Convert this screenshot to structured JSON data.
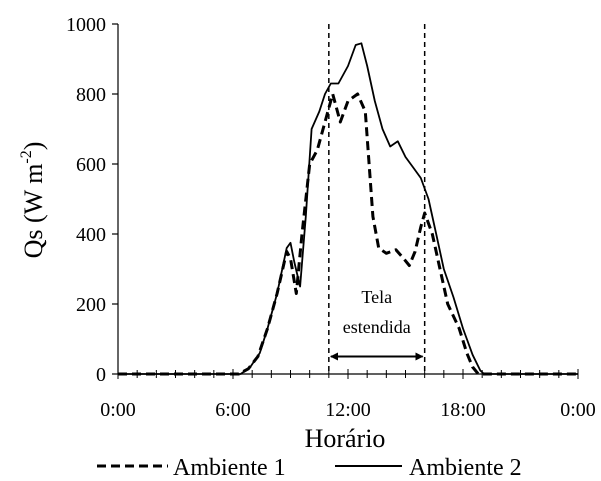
{
  "chart_data": {
    "type": "line",
    "title": "",
    "xlabel": "Horário",
    "ylabel": "Qs (W m",
    "ylabel_sup": "-2",
    "ylabel_close": ")",
    "xlim": [
      0,
      24
    ],
    "ylim": [
      0,
      1000
    ],
    "xticks": [
      0,
      6,
      12,
      18,
      24
    ],
    "xtick_labels": [
      "0:00",
      "6:00",
      "12:00",
      "18:00",
      "0:00"
    ],
    "yticks": [
      0,
      200,
      400,
      600,
      800,
      1000
    ],
    "ytick_labels": [
      "0",
      "200",
      "400",
      "600",
      "800",
      "1000"
    ],
    "grid": false,
    "legend_position": "bottom",
    "series": [
      {
        "name": "Ambiente 1",
        "dash": "dashed",
        "points": [
          [
            0,
            0
          ],
          [
            6.3,
            0
          ],
          [
            6.8,
            15
          ],
          [
            7.3,
            50
          ],
          [
            7.8,
            130
          ],
          [
            8.3,
            230
          ],
          [
            8.8,
            350
          ],
          [
            9.0,
            330
          ],
          [
            9.3,
            230
          ],
          [
            9.6,
            400
          ],
          [
            10.0,
            600
          ],
          [
            10.4,
            640
          ],
          [
            10.8,
            720
          ],
          [
            11.2,
            800
          ],
          [
            11.6,
            720
          ],
          [
            12.0,
            780
          ],
          [
            12.5,
            800
          ],
          [
            12.9,
            750
          ],
          [
            13.3,
            450
          ],
          [
            13.6,
            360
          ],
          [
            14.0,
            345
          ],
          [
            14.5,
            355
          ],
          [
            14.9,
            330
          ],
          [
            15.2,
            310
          ],
          [
            15.5,
            350
          ],
          [
            15.8,
            420
          ],
          [
            16.0,
            460
          ],
          [
            16.4,
            400
          ],
          [
            16.8,
            300
          ],
          [
            17.2,
            200
          ],
          [
            17.8,
            130
          ],
          [
            18.2,
            60
          ],
          [
            18.5,
            20
          ],
          [
            18.8,
            0
          ],
          [
            24,
            0
          ]
        ]
      },
      {
        "name": "Ambiente 2",
        "dash": "solid",
        "points": [
          [
            0,
            0
          ],
          [
            6.4,
            0
          ],
          [
            6.9,
            20
          ],
          [
            7.4,
            60
          ],
          [
            7.8,
            130
          ],
          [
            8.3,
            230
          ],
          [
            8.8,
            360
          ],
          [
            9.0,
            375
          ],
          [
            9.2,
            320
          ],
          [
            9.5,
            250
          ],
          [
            9.8,
            450
          ],
          [
            10.1,
            700
          ],
          [
            10.5,
            750
          ],
          [
            10.8,
            800
          ],
          [
            11.1,
            830
          ],
          [
            11.5,
            830
          ],
          [
            12.0,
            880
          ],
          [
            12.4,
            940
          ],
          [
            12.7,
            945
          ],
          [
            13.0,
            880
          ],
          [
            13.4,
            780
          ],
          [
            13.8,
            700
          ],
          [
            14.2,
            650
          ],
          [
            14.6,
            665
          ],
          [
            15.0,
            620
          ],
          [
            15.4,
            590
          ],
          [
            15.8,
            560
          ],
          [
            16.2,
            500
          ],
          [
            16.6,
            400
          ],
          [
            17.0,
            300
          ],
          [
            17.5,
            220
          ],
          [
            18.0,
            130
          ],
          [
            18.5,
            55
          ],
          [
            18.9,
            10
          ],
          [
            19.1,
            0
          ],
          [
            24,
            0
          ]
        ]
      }
    ],
    "vlines": [
      11.0,
      16.0
    ],
    "annotation": {
      "line1": "Tela",
      "line2": "estendida",
      "arrow_from": 11.0,
      "arrow_to": 16.0,
      "arrow_y": 50
    }
  }
}
